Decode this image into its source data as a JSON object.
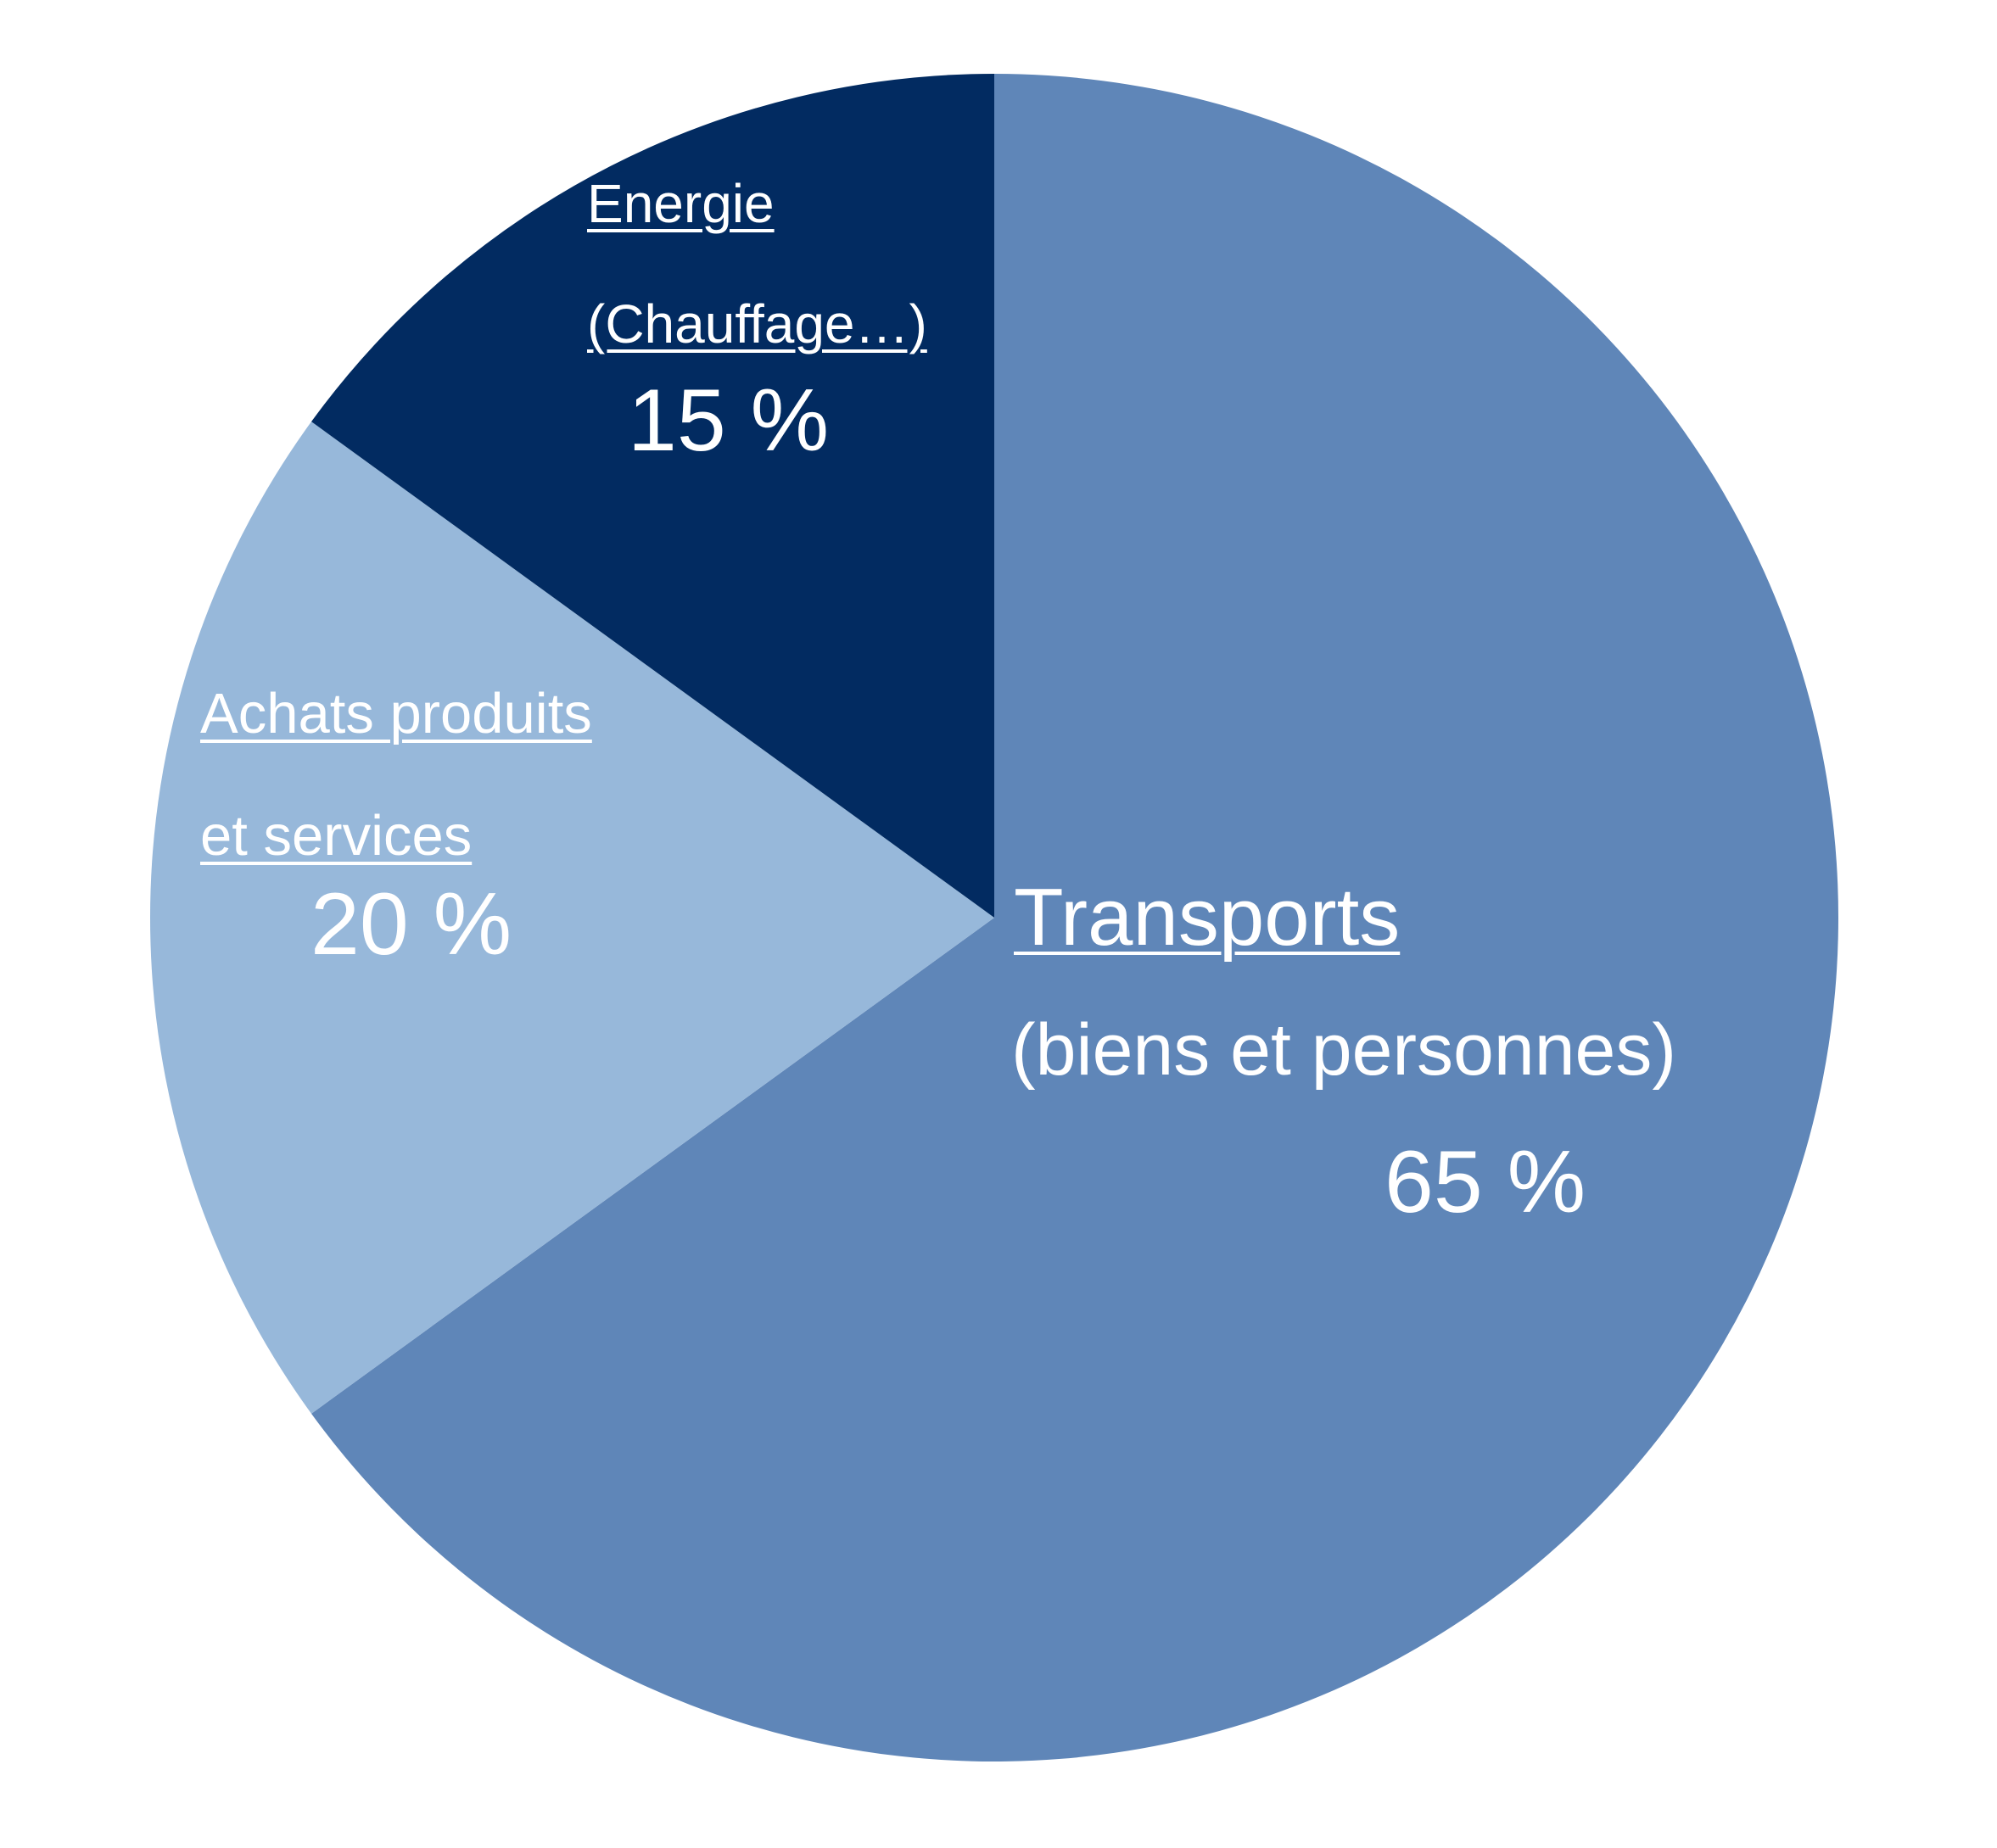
{
  "chart_data": {
    "type": "pie",
    "title": "",
    "slices": [
      {
        "key": "transports",
        "label_line1": "Transports",
        "label_line2": "(biens et personnes)",
        "value": 65,
        "value_label": "65 %",
        "color": "#5f86b8"
      },
      {
        "key": "achats",
        "label_line1": "Achats produits",
        "label_line2": "et services",
        "value": 20,
        "value_label": "20 %",
        "color": "#97b8da"
      },
      {
        "key": "energie",
        "label_line1": "Energie",
        "label_line2": "(Chauffage…)",
        "value": 15,
        "value_label": "15 %",
        "color": "#022b61"
      }
    ],
    "start_angle_deg": 0,
    "direction": "clockwise",
    "legend": "none"
  }
}
